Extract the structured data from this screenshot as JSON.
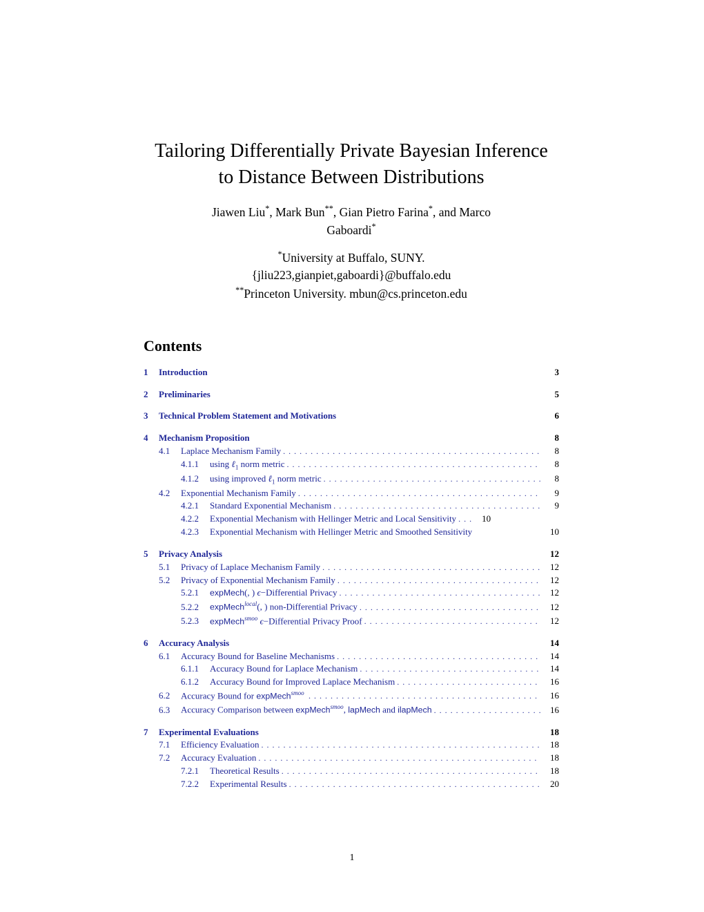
{
  "title_line1": "Tailoring Differentially Private Bayesian Inference",
  "title_line2": "to Distance Between Distributions",
  "authors": "Jiawen Liu*, Mark Bun**, Gian Pietro Farina*, and Marco Gaboardi*",
  "author_seg1": "Jiawen Liu",
  "author_seg2": ", Mark Bun",
  "author_seg3": ", Gian Pietro Farina",
  "author_seg4": ", and Marco",
  "author_seg5": "Gaboardi",
  "affil1_star": "*",
  "affil1_name": "University at Buffalo, SUNY.",
  "affil1_emails": "{jliu223,gianpiet,gaboardi}@buffalo.edu",
  "affil2_star": "**",
  "affil2_name": "Princeton University. mbun@cs.princeton.edu",
  "contents_heading": "Contents",
  "page_number": "1",
  "toc": [
    {
      "type": "section",
      "num": "1",
      "title": "Introduction",
      "page": "3"
    },
    {
      "type": "section",
      "num": "2",
      "title": "Preliminaries",
      "page": "5"
    },
    {
      "type": "section",
      "num": "3",
      "title": "Technical Problem Statement and Motivations",
      "page": "6"
    },
    {
      "type": "section",
      "num": "4",
      "title": "Mechanism Proposition",
      "page": "8",
      "children": [
        {
          "type": "sub",
          "num": "4.1",
          "title": "Laplace Mechanism Family",
          "page": "8",
          "dots": true,
          "children": [
            {
              "type": "subsub",
              "num": "4.1.1",
              "title": "using ℓ₁ norm metric",
              "page": "8",
              "special": "l1"
            },
            {
              "type": "subsub",
              "num": "4.1.2",
              "title": "using improved ℓ₁ norm metric",
              "page": "8",
              "special": "impl1"
            }
          ]
        },
        {
          "type": "sub",
          "num": "4.2",
          "title": "Exponential Mechanism Family",
          "page": "9",
          "dots": true,
          "children": [
            {
              "type": "subsub",
              "num": "4.2.1",
              "title": "Standard Exponential Mechanism",
              "page": "9"
            },
            {
              "type": "subsub",
              "num": "4.2.2",
              "title": "Exponential Mechanism with Hellinger Metric and Local Sensitivity",
              "page": "10",
              "shortdots": true
            },
            {
              "type": "subsub",
              "num": "4.2.3",
              "title": "Exponential Mechanism with Hellinger Metric and Smoothed Sensitivity",
              "page": "10",
              "nodots": true
            }
          ]
        }
      ]
    },
    {
      "type": "section",
      "num": "5",
      "title": "Privacy Analysis",
      "page": "12",
      "children": [
        {
          "type": "sub",
          "num": "5.1",
          "title": "Privacy of Laplace Mechanism Family",
          "page": "12",
          "dots": true
        },
        {
          "type": "sub",
          "num": "5.2",
          "title": "Privacy of Exponential Mechanism Family",
          "page": "12",
          "dots": true,
          "children": [
            {
              "type": "subsub",
              "num": "5.2.1",
              "title": "expMech(,) ε−Differential Privacy",
              "page": "12",
              "special": "expmech1"
            },
            {
              "type": "subsub",
              "num": "5.2.2",
              "title": "expMech^local(,) non-Differential Privacy",
              "page": "12",
              "special": "expmech2"
            },
            {
              "type": "subsub",
              "num": "5.2.3",
              "title": "expMech^smoo ε−Differential Privacy Proof",
              "page": "12",
              "special": "expmech3"
            }
          ]
        }
      ]
    },
    {
      "type": "section",
      "num": "6",
      "title": "Accuracy Analysis",
      "page": "14",
      "children": [
        {
          "type": "sub",
          "num": "6.1",
          "title": "Accuracy Bound for Baseline Mechanisms",
          "page": "14",
          "dots": true,
          "children": [
            {
              "type": "subsub",
              "num": "6.1.1",
              "title": "Accuracy Bound for Laplace Mechanism",
              "page": "14"
            },
            {
              "type": "subsub",
              "num": "6.1.2",
              "title": "Accuracy Bound for Improved Laplace Mechanism",
              "page": "16"
            }
          ]
        },
        {
          "type": "sub",
          "num": "6.2",
          "title": "Accuracy Bound for expMech^smoo",
          "page": "16",
          "dots": true,
          "special": "accsmoo"
        },
        {
          "type": "sub",
          "num": "6.3",
          "title": "Accuracy Comparison between expMech^smoo, lapMech and ilapMech",
          "page": "16",
          "dots": true,
          "special": "acccomp"
        }
      ]
    },
    {
      "type": "section",
      "num": "7",
      "title": "Experimental Evaluations",
      "page": "18",
      "children": [
        {
          "type": "sub",
          "num": "7.1",
          "title": "Efficiency Evaluation",
          "page": "18",
          "dots": true
        },
        {
          "type": "sub",
          "num": "7.2",
          "title": "Accuracy Evaluation",
          "page": "18",
          "dots": true,
          "children": [
            {
              "type": "subsub",
              "num": "7.2.1",
              "title": "Theoretical Results",
              "page": "18"
            },
            {
              "type": "subsub",
              "num": "7.2.2",
              "title": "Experimental Results",
              "page": "20"
            }
          ]
        }
      ]
    }
  ]
}
